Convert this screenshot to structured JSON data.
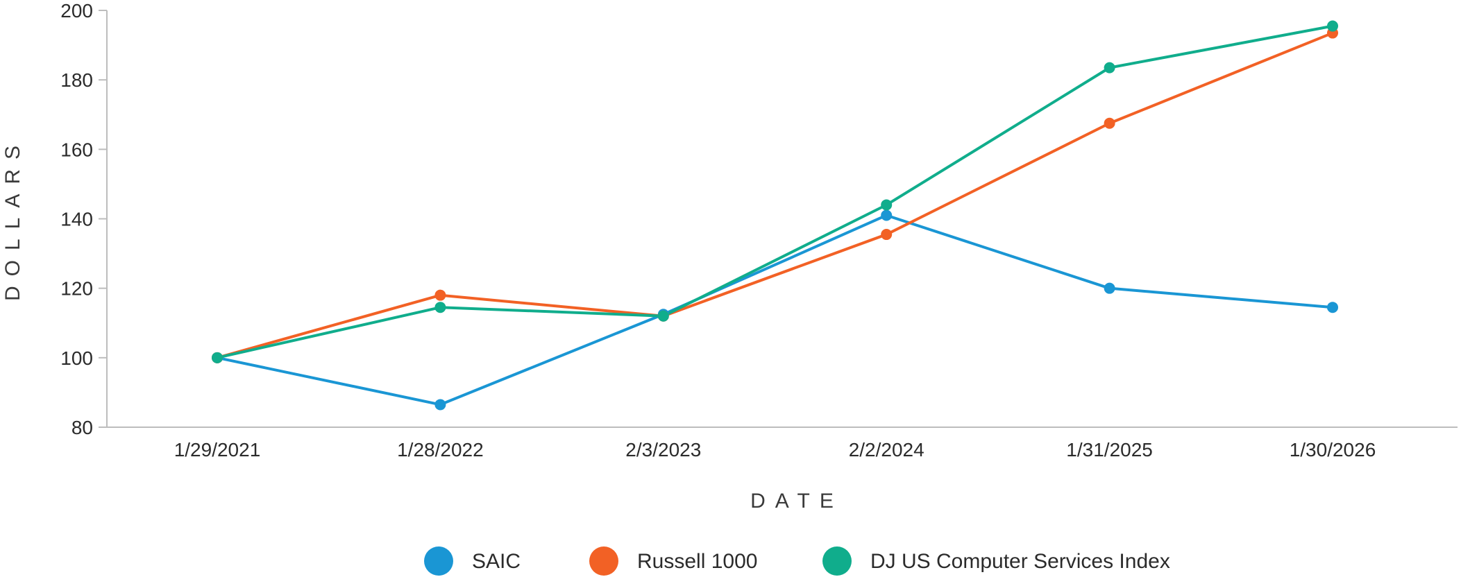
{
  "chart_data": {
    "type": "line",
    "xlabel": "DATE",
    "ylabel": "DOLLARS",
    "categories": [
      "1/29/2021",
      "1/28/2022",
      "2/3/2023",
      "2/2/2024",
      "1/31/2025",
      "1/30/2026"
    ],
    "ylim": [
      80,
      200
    ],
    "yticks": [
      80,
      100,
      120,
      140,
      160,
      180,
      200
    ],
    "grid": false,
    "legend_position": "bottom",
    "series": [
      {
        "name": "SAIC",
        "color": "#1a96d4",
        "values": [
          100,
          86.5,
          112.5,
          141.0,
          120.0,
          114.5
        ]
      },
      {
        "name": "Russell 1000",
        "color": "#f26125",
        "values": [
          100,
          118.0,
          112.0,
          135.5,
          167.5,
          193.5
        ]
      },
      {
        "name": "DJ US Computer Services Index",
        "color": "#10ad8c",
        "values": [
          100,
          114.5,
          112.0,
          144.0,
          183.5,
          195.5
        ]
      }
    ]
  }
}
